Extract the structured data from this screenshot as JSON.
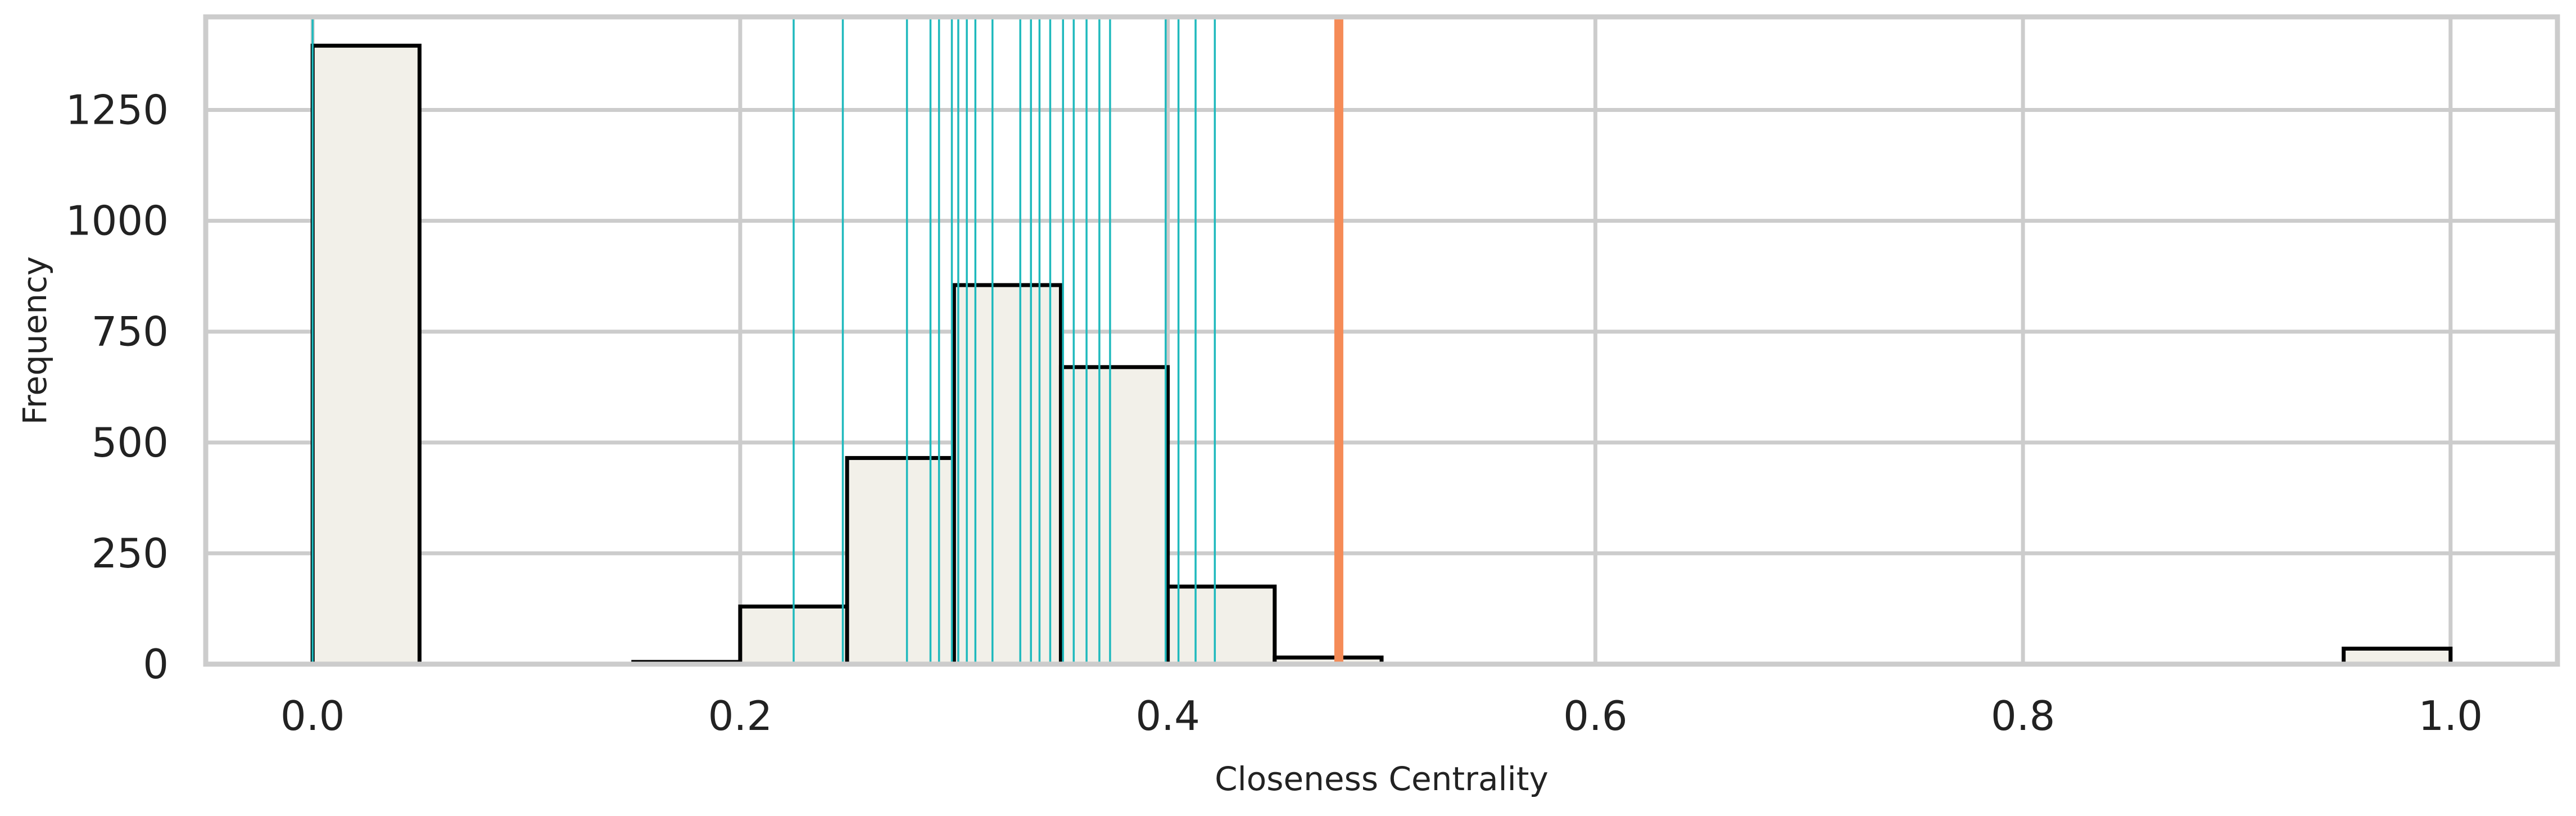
{
  "chart_data": {
    "type": "bar",
    "subtype": "histogram",
    "xlabel": "Closeness Centrality",
    "ylabel": "Frequency",
    "xlim": [
      -0.05,
      1.05
    ],
    "ylim": [
      0,
      1460
    ],
    "grid": true,
    "x_ticks": [
      0.0,
      0.2,
      0.4,
      0.6,
      0.8,
      1.0
    ],
    "x_tick_labels": [
      "0.0",
      "0.2",
      "0.4",
      "0.6",
      "0.8",
      "1.0"
    ],
    "y_ticks": [
      0,
      250,
      500,
      750,
      1000,
      1250
    ],
    "y_tick_labels": [
      "0",
      "250",
      "500",
      "750",
      "1000",
      "1250"
    ],
    "bins": [
      {
        "x0": 0.0,
        "x1": 0.05,
        "count": 1395
      },
      {
        "x0": 0.05,
        "x1": 0.1,
        "count": 0
      },
      {
        "x0": 0.1,
        "x1": 0.15,
        "count": 0
      },
      {
        "x0": 0.15,
        "x1": 0.2,
        "count": 5
      },
      {
        "x0": 0.2,
        "x1": 0.25,
        "count": 130
      },
      {
        "x0": 0.25,
        "x1": 0.3,
        "count": 465
      },
      {
        "x0": 0.3,
        "x1": 0.35,
        "count": 855
      },
      {
        "x0": 0.35,
        "x1": 0.4,
        "count": 670
      },
      {
        "x0": 0.4,
        "x1": 0.45,
        "count": 175
      },
      {
        "x0": 0.45,
        "x1": 0.5,
        "count": 15
      },
      {
        "x0": 0.5,
        "x1": 0.55,
        "count": 0
      },
      {
        "x0": 0.55,
        "x1": 0.6,
        "count": 0
      },
      {
        "x0": 0.6,
        "x1": 0.65,
        "count": 0
      },
      {
        "x0": 0.65,
        "x1": 0.7,
        "count": 0
      },
      {
        "x0": 0.7,
        "x1": 0.75,
        "count": 0
      },
      {
        "x0": 0.75,
        "x1": 0.8,
        "count": 0
      },
      {
        "x0": 0.8,
        "x1": 0.85,
        "count": 0
      },
      {
        "x0": 0.85,
        "x1": 0.9,
        "count": 0
      },
      {
        "x0": 0.9,
        "x1": 0.95,
        "count": 0
      },
      {
        "x0": 0.95,
        "x1": 1.0,
        "count": 35
      }
    ],
    "reference_lines": {
      "teal": [
        0.0,
        0.225,
        0.248,
        0.278,
        0.289,
        0.293,
        0.299,
        0.302,
        0.306,
        0.31,
        0.318,
        0.331,
        0.336,
        0.34,
        0.345,
        0.351,
        0.356,
        0.362,
        0.368,
        0.373,
        0.399,
        0.405,
        0.413,
        0.422
      ],
      "orange": [
        0.48
      ]
    },
    "colors": {
      "bar_fill": "#f2f0e9",
      "bar_edge": "#000000",
      "teal_line": "#1fb9bd",
      "orange_line": "#f58b57",
      "grid": "#cccccc",
      "frame": "#cccccc"
    }
  }
}
